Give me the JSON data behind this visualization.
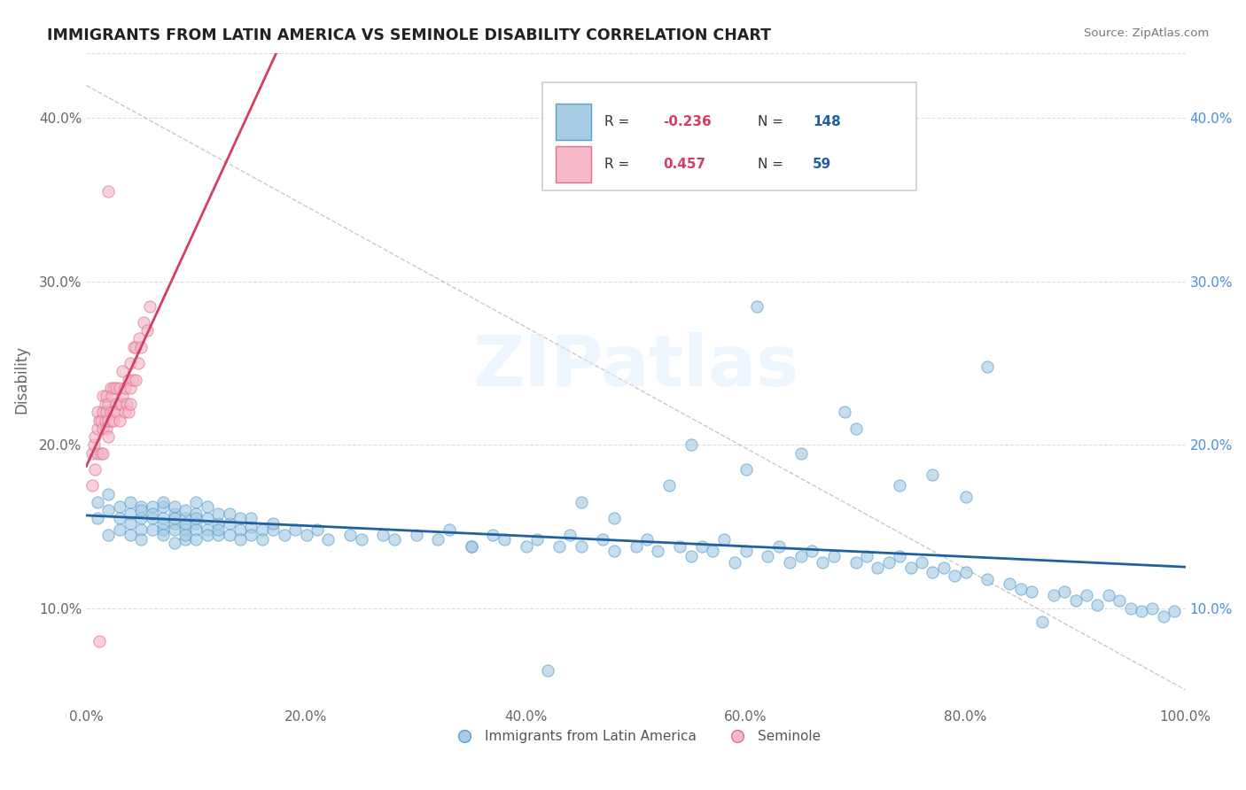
{
  "title": "IMMIGRANTS FROM LATIN AMERICA VS SEMINOLE DISABILITY CORRELATION CHART",
  "source": "Source: ZipAtlas.com",
  "ylabel": "Disability",
  "watermark": "ZIPatlas",
  "xlim": [
    0.0,
    1.0
  ],
  "ylim": [
    0.04,
    0.44
  ],
  "xticks": [
    0.0,
    0.2,
    0.4,
    0.6,
    0.8,
    1.0
  ],
  "xticklabels": [
    "0.0%",
    "20.0%",
    "40.0%",
    "60.0%",
    "80.0%",
    "100.0%"
  ],
  "yticks": [
    0.1,
    0.2,
    0.3,
    0.4
  ],
  "yticklabels_left": [
    "10.0%",
    "20.0%",
    "30.0%",
    "40.0%"
  ],
  "yticklabels_right": [
    "10.0%",
    "20.0%",
    "30.0%",
    "40.0%"
  ],
  "blue_color": "#a8cce4",
  "blue_edge": "#5b9ec9",
  "pink_color": "#f4b8c8",
  "pink_edge": "#e07090",
  "blue_line_color": "#2060a0",
  "pink_line_color": "#d04060",
  "grid_color": "#dddddd",
  "R_blue": -0.236,
  "N_blue": 148,
  "R_pink": 0.457,
  "N_pink": 59,
  "blue_scatter_x": [
    0.01,
    0.01,
    0.02,
    0.02,
    0.02,
    0.03,
    0.03,
    0.03,
    0.04,
    0.04,
    0.04,
    0.04,
    0.05,
    0.05,
    0.05,
    0.05,
    0.05,
    0.06,
    0.06,
    0.06,
    0.06,
    0.07,
    0.07,
    0.07,
    0.07,
    0.07,
    0.07,
    0.08,
    0.08,
    0.08,
    0.08,
    0.08,
    0.08,
    0.09,
    0.09,
    0.09,
    0.09,
    0.09,
    0.09,
    0.1,
    0.1,
    0.1,
    0.1,
    0.1,
    0.1,
    0.11,
    0.11,
    0.11,
    0.11,
    0.12,
    0.12,
    0.12,
    0.12,
    0.13,
    0.13,
    0.13,
    0.14,
    0.14,
    0.14,
    0.15,
    0.15,
    0.15,
    0.16,
    0.16,
    0.17,
    0.17,
    0.18,
    0.19,
    0.2,
    0.21,
    0.22,
    0.24,
    0.25,
    0.27,
    0.28,
    0.3,
    0.32,
    0.33,
    0.35,
    0.37,
    0.38,
    0.4,
    0.41,
    0.43,
    0.44,
    0.45,
    0.47,
    0.48,
    0.5,
    0.51,
    0.52,
    0.54,
    0.55,
    0.56,
    0.57,
    0.58,
    0.59,
    0.6,
    0.62,
    0.63,
    0.64,
    0.65,
    0.66,
    0.67,
    0.68,
    0.7,
    0.71,
    0.72,
    0.73,
    0.74,
    0.75,
    0.76,
    0.77,
    0.78,
    0.79,
    0.8,
    0.82,
    0.84,
    0.85,
    0.86,
    0.88,
    0.89,
    0.9,
    0.91,
    0.92,
    0.93,
    0.94,
    0.95,
    0.96,
    0.97,
    0.98,
    0.99,
    0.61,
    0.69,
    0.55,
    0.74,
    0.82,
    0.87,
    0.77,
    0.65,
    0.7,
    0.8,
    0.6,
    0.53,
    0.45,
    0.35,
    0.48,
    0.42
  ],
  "blue_scatter_y": [
    0.165,
    0.155,
    0.17,
    0.145,
    0.16,
    0.162,
    0.155,
    0.148,
    0.158,
    0.152,
    0.165,
    0.145,
    0.162,
    0.155,
    0.148,
    0.16,
    0.142,
    0.155,
    0.162,
    0.148,
    0.158,
    0.162,
    0.155,
    0.148,
    0.165,
    0.152,
    0.145,
    0.158,
    0.152,
    0.162,
    0.148,
    0.155,
    0.14,
    0.155,
    0.148,
    0.16,
    0.142,
    0.152,
    0.145,
    0.158,
    0.152,
    0.165,
    0.148,
    0.155,
    0.142,
    0.155,
    0.148,
    0.162,
    0.145,
    0.152,
    0.158,
    0.145,
    0.148,
    0.152,
    0.145,
    0.158,
    0.148,
    0.155,
    0.142,
    0.15,
    0.145,
    0.155,
    0.148,
    0.142,
    0.148,
    0.152,
    0.145,
    0.148,
    0.145,
    0.148,
    0.142,
    0.145,
    0.142,
    0.145,
    0.142,
    0.145,
    0.142,
    0.148,
    0.138,
    0.145,
    0.142,
    0.138,
    0.142,
    0.138,
    0.145,
    0.138,
    0.142,
    0.135,
    0.138,
    0.142,
    0.135,
    0.138,
    0.132,
    0.138,
    0.135,
    0.142,
    0.128,
    0.135,
    0.132,
    0.138,
    0.128,
    0.132,
    0.135,
    0.128,
    0.132,
    0.128,
    0.132,
    0.125,
    0.128,
    0.132,
    0.125,
    0.128,
    0.122,
    0.125,
    0.12,
    0.122,
    0.118,
    0.115,
    0.112,
    0.11,
    0.108,
    0.11,
    0.105,
    0.108,
    0.102,
    0.108,
    0.105,
    0.1,
    0.098,
    0.1,
    0.095,
    0.098,
    0.285,
    0.22,
    0.2,
    0.175,
    0.248,
    0.092,
    0.182,
    0.195,
    0.21,
    0.168,
    0.185,
    0.175,
    0.165,
    0.138,
    0.155,
    0.062
  ],
  "pink_scatter_x": [
    0.005,
    0.005,
    0.007,
    0.008,
    0.008,
    0.01,
    0.01,
    0.01,
    0.012,
    0.013,
    0.013,
    0.015,
    0.015,
    0.015,
    0.015,
    0.017,
    0.017,
    0.018,
    0.018,
    0.018,
    0.02,
    0.02,
    0.02,
    0.022,
    0.022,
    0.023,
    0.023,
    0.025,
    0.025,
    0.025,
    0.027,
    0.027,
    0.028,
    0.03,
    0.03,
    0.03,
    0.032,
    0.033,
    0.033,
    0.035,
    0.035,
    0.037,
    0.038,
    0.038,
    0.04,
    0.04,
    0.04,
    0.042,
    0.043,
    0.045,
    0.045,
    0.047,
    0.048,
    0.05,
    0.052,
    0.055,
    0.058,
    0.012,
    0.02
  ],
  "pink_scatter_y": [
    0.195,
    0.175,
    0.2,
    0.205,
    0.185,
    0.21,
    0.22,
    0.195,
    0.215,
    0.195,
    0.215,
    0.22,
    0.23,
    0.21,
    0.195,
    0.225,
    0.215,
    0.22,
    0.23,
    0.21,
    0.215,
    0.225,
    0.205,
    0.22,
    0.235,
    0.215,
    0.23,
    0.22,
    0.235,
    0.215,
    0.225,
    0.235,
    0.22,
    0.225,
    0.235,
    0.215,
    0.225,
    0.23,
    0.245,
    0.22,
    0.235,
    0.225,
    0.24,
    0.22,
    0.235,
    0.25,
    0.225,
    0.24,
    0.26,
    0.24,
    0.26,
    0.25,
    0.265,
    0.26,
    0.275,
    0.27,
    0.285,
    0.08,
    0.355
  ]
}
